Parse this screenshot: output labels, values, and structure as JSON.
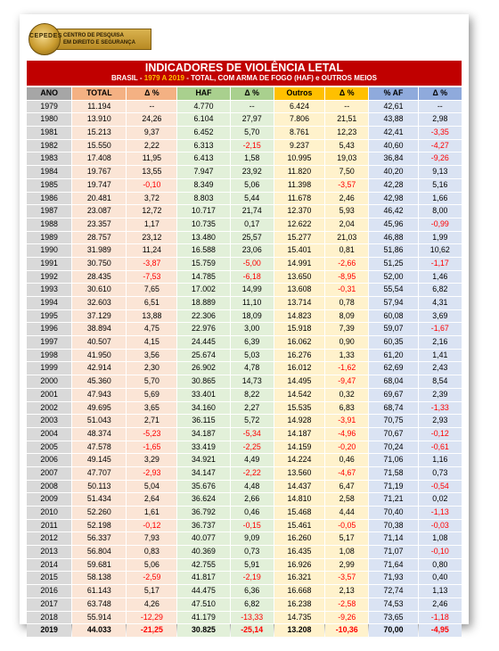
{
  "logo": {
    "badge_text": "CEPEDES",
    "line1": "CENTRO DE PESQUISA",
    "line2": "EM DIREITO E SEGURANÇA"
  },
  "header": {
    "title": "INDICADORES DE VIOLÊNCIA LETAL",
    "subtitle_pre": "BRASIL - ",
    "subtitle_highlight": "1979 A 2019",
    "subtitle_post": " - TOTAL, COM ARMA DE FOGO (HAF) e OUTROS MEIOS"
  },
  "columns": [
    "ANO",
    "TOTAL",
    "Δ %",
    "HAF",
    "Δ %",
    "Outros",
    "Δ %",
    "% AF",
    "Δ %"
  ],
  "rows": [
    [
      "1979",
      "11.194",
      "--",
      "4.770",
      "--",
      "6.424",
      "--",
      "42,61",
      "--"
    ],
    [
      "1980",
      "13.910",
      "24,26",
      "6.104",
      "27,97",
      "7.806",
      "21,51",
      "43,88",
      "2,98"
    ],
    [
      "1981",
      "15.213",
      "9,37",
      "6.452",
      "5,70",
      "8.761",
      "12,23",
      "42,41",
      "-3,35"
    ],
    [
      "1982",
      "15.550",
      "2,22",
      "6.313",
      "-2,15",
      "9.237",
      "5,43",
      "40,60",
      "-4,27"
    ],
    [
      "1983",
      "17.408",
      "11,95",
      "6.413",
      "1,58",
      "10.995",
      "19,03",
      "36,84",
      "-9,26"
    ],
    [
      "1984",
      "19.767",
      "13,55",
      "7.947",
      "23,92",
      "11.820",
      "7,50",
      "40,20",
      "9,13"
    ],
    [
      "1985",
      "19.747",
      "-0,10",
      "8.349",
      "5,06",
      "11.398",
      "-3,57",
      "42,28",
      "5,16"
    ],
    [
      "1986",
      "20.481",
      "3,72",
      "8.803",
      "5,44",
      "11.678",
      "2,46",
      "42,98",
      "1,66"
    ],
    [
      "1987",
      "23.087",
      "12,72",
      "10.717",
      "21,74",
      "12.370",
      "5,93",
      "46,42",
      "8,00"
    ],
    [
      "1988",
      "23.357",
      "1,17",
      "10.735",
      "0,17",
      "12.622",
      "2,04",
      "45,96",
      "-0,99"
    ],
    [
      "1989",
      "28.757",
      "23,12",
      "13.480",
      "25,57",
      "15.277",
      "21,03",
      "46,88",
      "1,99"
    ],
    [
      "1990",
      "31.989",
      "11,24",
      "16.588",
      "23,06",
      "15.401",
      "0,81",
      "51,86",
      "10,62"
    ],
    [
      "1991",
      "30.750",
      "-3,87",
      "15.759",
      "-5,00",
      "14.991",
      "-2,66",
      "51,25",
      "-1,17"
    ],
    [
      "1992",
      "28.435",
      "-7,53",
      "14.785",
      "-6,18",
      "13.650",
      "-8,95",
      "52,00",
      "1,46"
    ],
    [
      "1993",
      "30.610",
      "7,65",
      "17.002",
      "14,99",
      "13.608",
      "-0,31",
      "55,54",
      "6,82"
    ],
    [
      "1994",
      "32.603",
      "6,51",
      "18.889",
      "11,10",
      "13.714",
      "0,78",
      "57,94",
      "4,31"
    ],
    [
      "1995",
      "37.129",
      "13,88",
      "22.306",
      "18,09",
      "14.823",
      "8,09",
      "60,08",
      "3,69"
    ],
    [
      "1996",
      "38.894",
      "4,75",
      "22.976",
      "3,00",
      "15.918",
      "7,39",
      "59,07",
      "-1,67"
    ],
    [
      "1997",
      "40.507",
      "4,15",
      "24.445",
      "6,39",
      "16.062",
      "0,90",
      "60,35",
      "2,16"
    ],
    [
      "1998",
      "41.950",
      "3,56",
      "25.674",
      "5,03",
      "16.276",
      "1,33",
      "61,20",
      "1,41"
    ],
    [
      "1999",
      "42.914",
      "2,30",
      "26.902",
      "4,78",
      "16.012",
      "-1,62",
      "62,69",
      "2,43"
    ],
    [
      "2000",
      "45.360",
      "5,70",
      "30.865",
      "14,73",
      "14.495",
      "-9,47",
      "68,04",
      "8,54"
    ],
    [
      "2001",
      "47.943",
      "5,69",
      "33.401",
      "8,22",
      "14.542",
      "0,32",
      "69,67",
      "2,39"
    ],
    [
      "2002",
      "49.695",
      "3,65",
      "34.160",
      "2,27",
      "15.535",
      "6,83",
      "68,74",
      "-1,33"
    ],
    [
      "2003",
      "51.043",
      "2,71",
      "36.115",
      "5,72",
      "14.928",
      "-3,91",
      "70,75",
      "2,93"
    ],
    [
      "2004",
      "48.374",
      "-5,23",
      "34.187",
      "-5,34",
      "14.187",
      "-4,96",
      "70,67",
      "-0,12"
    ],
    [
      "2005",
      "47.578",
      "-1,65",
      "33.419",
      "-2,25",
      "14.159",
      "-0,20",
      "70,24",
      "-0,61"
    ],
    [
      "2006",
      "49.145",
      "3,29",
      "34.921",
      "4,49",
      "14.224",
      "0,46",
      "71,06",
      "1,16"
    ],
    [
      "2007",
      "47.707",
      "-2,93",
      "34.147",
      "-2,22",
      "13.560",
      "-4,67",
      "71,58",
      "0,73"
    ],
    [
      "2008",
      "50.113",
      "5,04",
      "35.676",
      "4,48",
      "14.437",
      "6,47",
      "71,19",
      "-0,54"
    ],
    [
      "2009",
      "51.434",
      "2,64",
      "36.624",
      "2,66",
      "14.810",
      "2,58",
      "71,21",
      "0,02"
    ],
    [
      "2010",
      "52.260",
      "1,61",
      "36.792",
      "0,46",
      "15.468",
      "4,44",
      "70,40",
      "-1,13"
    ],
    [
      "2011",
      "52.198",
      "-0,12",
      "36.737",
      "-0,15",
      "15.461",
      "-0,05",
      "70,38",
      "-0,03"
    ],
    [
      "2012",
      "56.337",
      "7,93",
      "40.077",
      "9,09",
      "16.260",
      "5,17",
      "71,14",
      "1,08"
    ],
    [
      "2013",
      "56.804",
      "0,83",
      "40.369",
      "0,73",
      "16.435",
      "1,08",
      "71,07",
      "-0,10"
    ],
    [
      "2014",
      "59.681",
      "5,06",
      "42.755",
      "5,91",
      "16.926",
      "2,99",
      "71,64",
      "0,80"
    ],
    [
      "2015",
      "58.138",
      "-2,59",
      "41.817",
      "-2,19",
      "16.321",
      "-3,57",
      "71,93",
      "0,40"
    ],
    [
      "2016",
      "61.143",
      "5,17",
      "44.475",
      "6,36",
      "16.668",
      "2,13",
      "72,74",
      "1,13"
    ],
    [
      "2017",
      "63.748",
      "4,26",
      "47.510",
      "6,82",
      "16.238",
      "-2,58",
      "74,53",
      "2,46"
    ],
    [
      "2018",
      "55.914",
      "-12,29",
      "41.179",
      "-13,33",
      "14.735",
      "-9,26",
      "73,65",
      "-1,18"
    ],
    [
      "2019",
      "44.033",
      "-21,25",
      "30.825",
      "-25,14",
      "13.208",
      "-10,36",
      "70,00",
      "-4,95"
    ]
  ]
}
